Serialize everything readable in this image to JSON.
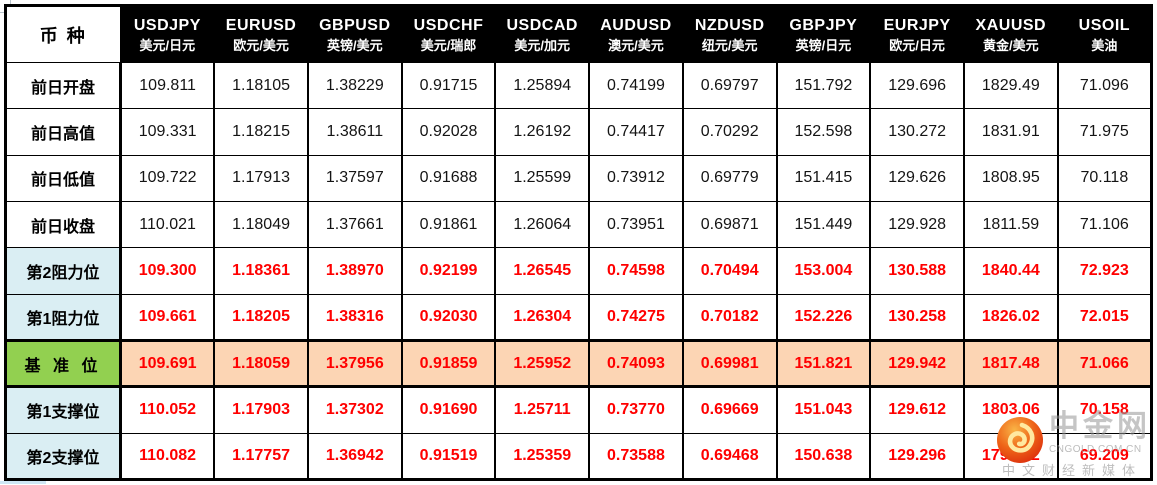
{
  "watermark": {
    "brand": "中金网",
    "domain": "CNGOLD.COM.CN",
    "tagline": "中文财经新媒体"
  },
  "chart_data": {
    "type": "table",
    "corner_label": "币 种",
    "columns": [
      {
        "code": "USDJPY",
        "name_cn": "美元/日元"
      },
      {
        "code": "EURUSD",
        "name_cn": "欧元/美元"
      },
      {
        "code": "GBPUSD",
        "name_cn": "英镑/美元"
      },
      {
        "code": "USDCHF",
        "name_cn": "美元/瑞郎"
      },
      {
        "code": "USDCAD",
        "name_cn": "美元/加元"
      },
      {
        "code": "AUDUSD",
        "name_cn": "澳元/美元"
      },
      {
        "code": "NZDUSD",
        "name_cn": "纽元/美元"
      },
      {
        "code": "GBPJPY",
        "name_cn": "英镑/日元"
      },
      {
        "code": "EURJPY",
        "name_cn": "欧元/日元"
      },
      {
        "code": "XAUUSD",
        "name_cn": "黄金/美元"
      },
      {
        "code": "USOIL",
        "name_cn": "美油"
      }
    ],
    "rows": [
      {
        "label": "前日开盘",
        "style": "plain",
        "values": [
          "109.811",
          "1.18105",
          "1.38229",
          "0.91715",
          "1.25894",
          "0.74199",
          "0.69797",
          "151.792",
          "129.696",
          "1829.49",
          "71.096"
        ]
      },
      {
        "label": "前日高值",
        "style": "plain",
        "values": [
          "109.331",
          "1.18215",
          "1.38611",
          "0.92028",
          "1.26192",
          "0.74417",
          "0.70292",
          "152.598",
          "130.272",
          "1831.91",
          "71.975"
        ]
      },
      {
        "label": "前日低值",
        "style": "plain",
        "values": [
          "109.722",
          "1.17913",
          "1.37597",
          "0.91688",
          "1.25599",
          "0.73912",
          "0.69779",
          "151.415",
          "129.626",
          "1808.95",
          "70.118"
        ]
      },
      {
        "label": "前日收盘",
        "style": "plain",
        "values": [
          "110.021",
          "1.18049",
          "1.37661",
          "0.91861",
          "1.26064",
          "0.73951",
          "0.69871",
          "151.449",
          "129.928",
          "1811.59",
          "71.106"
        ]
      },
      {
        "label": "第2阻力位",
        "style": "level",
        "values": [
          "109.300",
          "1.18361",
          "1.38970",
          "0.92199",
          "1.26545",
          "0.74598",
          "0.70494",
          "153.004",
          "130.588",
          "1840.44",
          "72.923"
        ]
      },
      {
        "label": "第1阻力位",
        "style": "level",
        "values": [
          "109.661",
          "1.18205",
          "1.38316",
          "0.92030",
          "1.26304",
          "0.74275",
          "0.70182",
          "152.226",
          "130.258",
          "1826.02",
          "72.015"
        ]
      },
      {
        "label": "基 准 位",
        "style": "pivot",
        "values": [
          "109.691",
          "1.18059",
          "1.37956",
          "0.91859",
          "1.25952",
          "0.74093",
          "0.69981",
          "151.821",
          "129.942",
          "1817.48",
          "71.066"
        ]
      },
      {
        "label": "第1支撑位",
        "style": "level",
        "values": [
          "110.052",
          "1.17903",
          "1.37302",
          "0.91690",
          "1.25711",
          "0.73770",
          "0.69669",
          "151.043",
          "129.612",
          "1803.06",
          "70.158"
        ]
      },
      {
        "label": "第2支撑位",
        "style": "level",
        "values": [
          "110.082",
          "1.17757",
          "1.36942",
          "0.91519",
          "1.25359",
          "0.73588",
          "0.69468",
          "150.638",
          "129.296",
          "1794.52",
          "69.209"
        ]
      }
    ],
    "colors": {
      "header_bg": "#000000",
      "header_text": "#ffffff",
      "level_label_bg": "#daeef3",
      "pivot_label_bg": "#92d050",
      "pivot_row_bg": "#fcd5b4",
      "highlight_text": "#ff0000",
      "logo_orange": "#ef6a1a"
    }
  }
}
